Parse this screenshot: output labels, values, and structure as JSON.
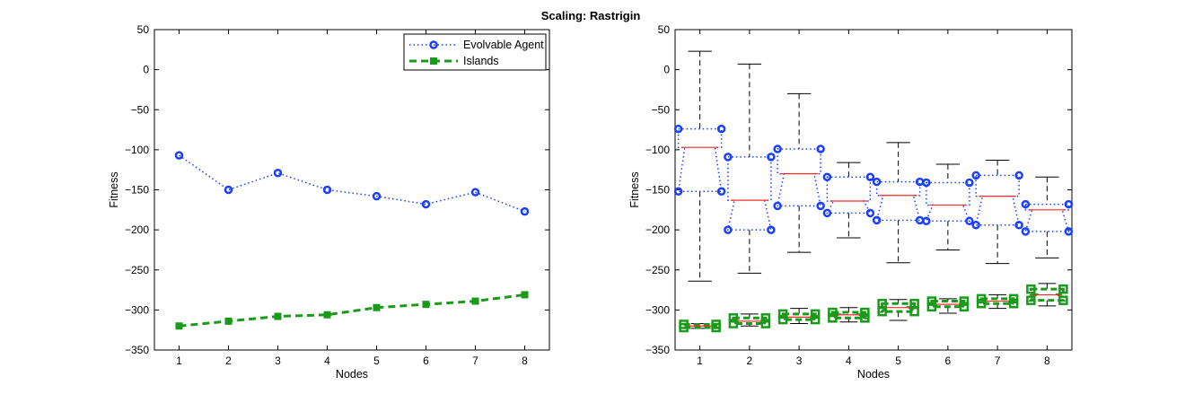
{
  "figure": {
    "title": "Scaling: Rastrigin"
  },
  "colors": {
    "agent": "#1a3fff",
    "islands": "#1a9a1a",
    "median": "#ff2a2a",
    "whisker": "#000000"
  },
  "chart_data": [
    {
      "type": "line",
      "title": "",
      "xlabel": "Nodes",
      "ylabel": "Fitness",
      "xlim": [
        0.5,
        8.5
      ],
      "ylim": [
        -350,
        50
      ],
      "xticks": [
        "1",
        "2",
        "3",
        "4",
        "5",
        "6",
        "7",
        "8"
      ],
      "yticks": [
        "50",
        "0",
        "−50",
        "−100",
        "−150",
        "−200",
        "−250",
        "−300",
        "−350"
      ],
      "ytick_values": [
        50,
        0,
        -50,
        -100,
        -150,
        -200,
        -250,
        -300,
        -350
      ],
      "x": [
        1,
        2,
        3,
        4,
        5,
        6,
        7,
        8
      ],
      "series": [
        {
          "name": "Evolvable Agent",
          "values": [
            -107,
            -150,
            -129,
            -150,
            -158,
            -168,
            -153,
            -177
          ]
        },
        {
          "name": "Islands",
          "values": [
            -320,
            -314,
            -308,
            -306,
            -297,
            -293,
            -289,
            -281
          ]
        }
      ],
      "legend": {
        "position": "top-right",
        "entries": [
          "Evolvable Agent",
          "Islands"
        ]
      }
    },
    {
      "type": "box",
      "title": "",
      "xlabel": "Nodes",
      "ylabel": "Fitness",
      "xlim": [
        0.5,
        8.5
      ],
      "ylim": [
        -350,
        50
      ],
      "xticks": [
        "1",
        "2",
        "3",
        "4",
        "5",
        "6",
        "7",
        "8"
      ],
      "yticks": [
        "50",
        "0",
        "−50",
        "−100",
        "−150",
        "−200",
        "−250",
        "−300",
        "−350"
      ],
      "ytick_values": [
        50,
        0,
        -50,
        -100,
        -150,
        -200,
        -250,
        -300,
        -350
      ],
      "x": [
        1,
        2,
        3,
        4,
        5,
        6,
        7,
        8
      ],
      "series": [
        {
          "name": "Evolvable Agent",
          "whisker_high": [
            23,
            7,
            -30,
            -116,
            -91,
            -118,
            -113,
            -134
          ],
          "q3": [
            -74,
            -109,
            -99,
            -134,
            -140,
            -141,
            -132,
            -168
          ],
          "median": [
            -97,
            -163,
            -130,
            -164,
            -157,
            -169,
            -158,
            -175
          ],
          "q1": [
            -152,
            -200,
            -170,
            -179,
            -188,
            -189,
            -194,
            -202
          ],
          "whisker_low": [
            -264,
            -254,
            -228,
            -210,
            -241,
            -225,
            -242,
            -235
          ]
        },
        {
          "name": "Islands",
          "whisker_high": [
            -317,
            -305,
            -298,
            -297,
            -287,
            -286,
            -281,
            -267
          ],
          "q3": [
            -318,
            -310,
            -305,
            -303,
            -292,
            -289,
            -286,
            -274
          ],
          "median": [
            -320,
            -314,
            -309,
            -306,
            -297,
            -293,
            -289,
            -281
          ],
          "q1": [
            -322,
            -317,
            -312,
            -310,
            -302,
            -296,
            -292,
            -288
          ],
          "whisker_low": [
            -323,
            -320,
            -317,
            -315,
            -313,
            -304,
            -298,
            -295
          ]
        }
      ]
    }
  ]
}
